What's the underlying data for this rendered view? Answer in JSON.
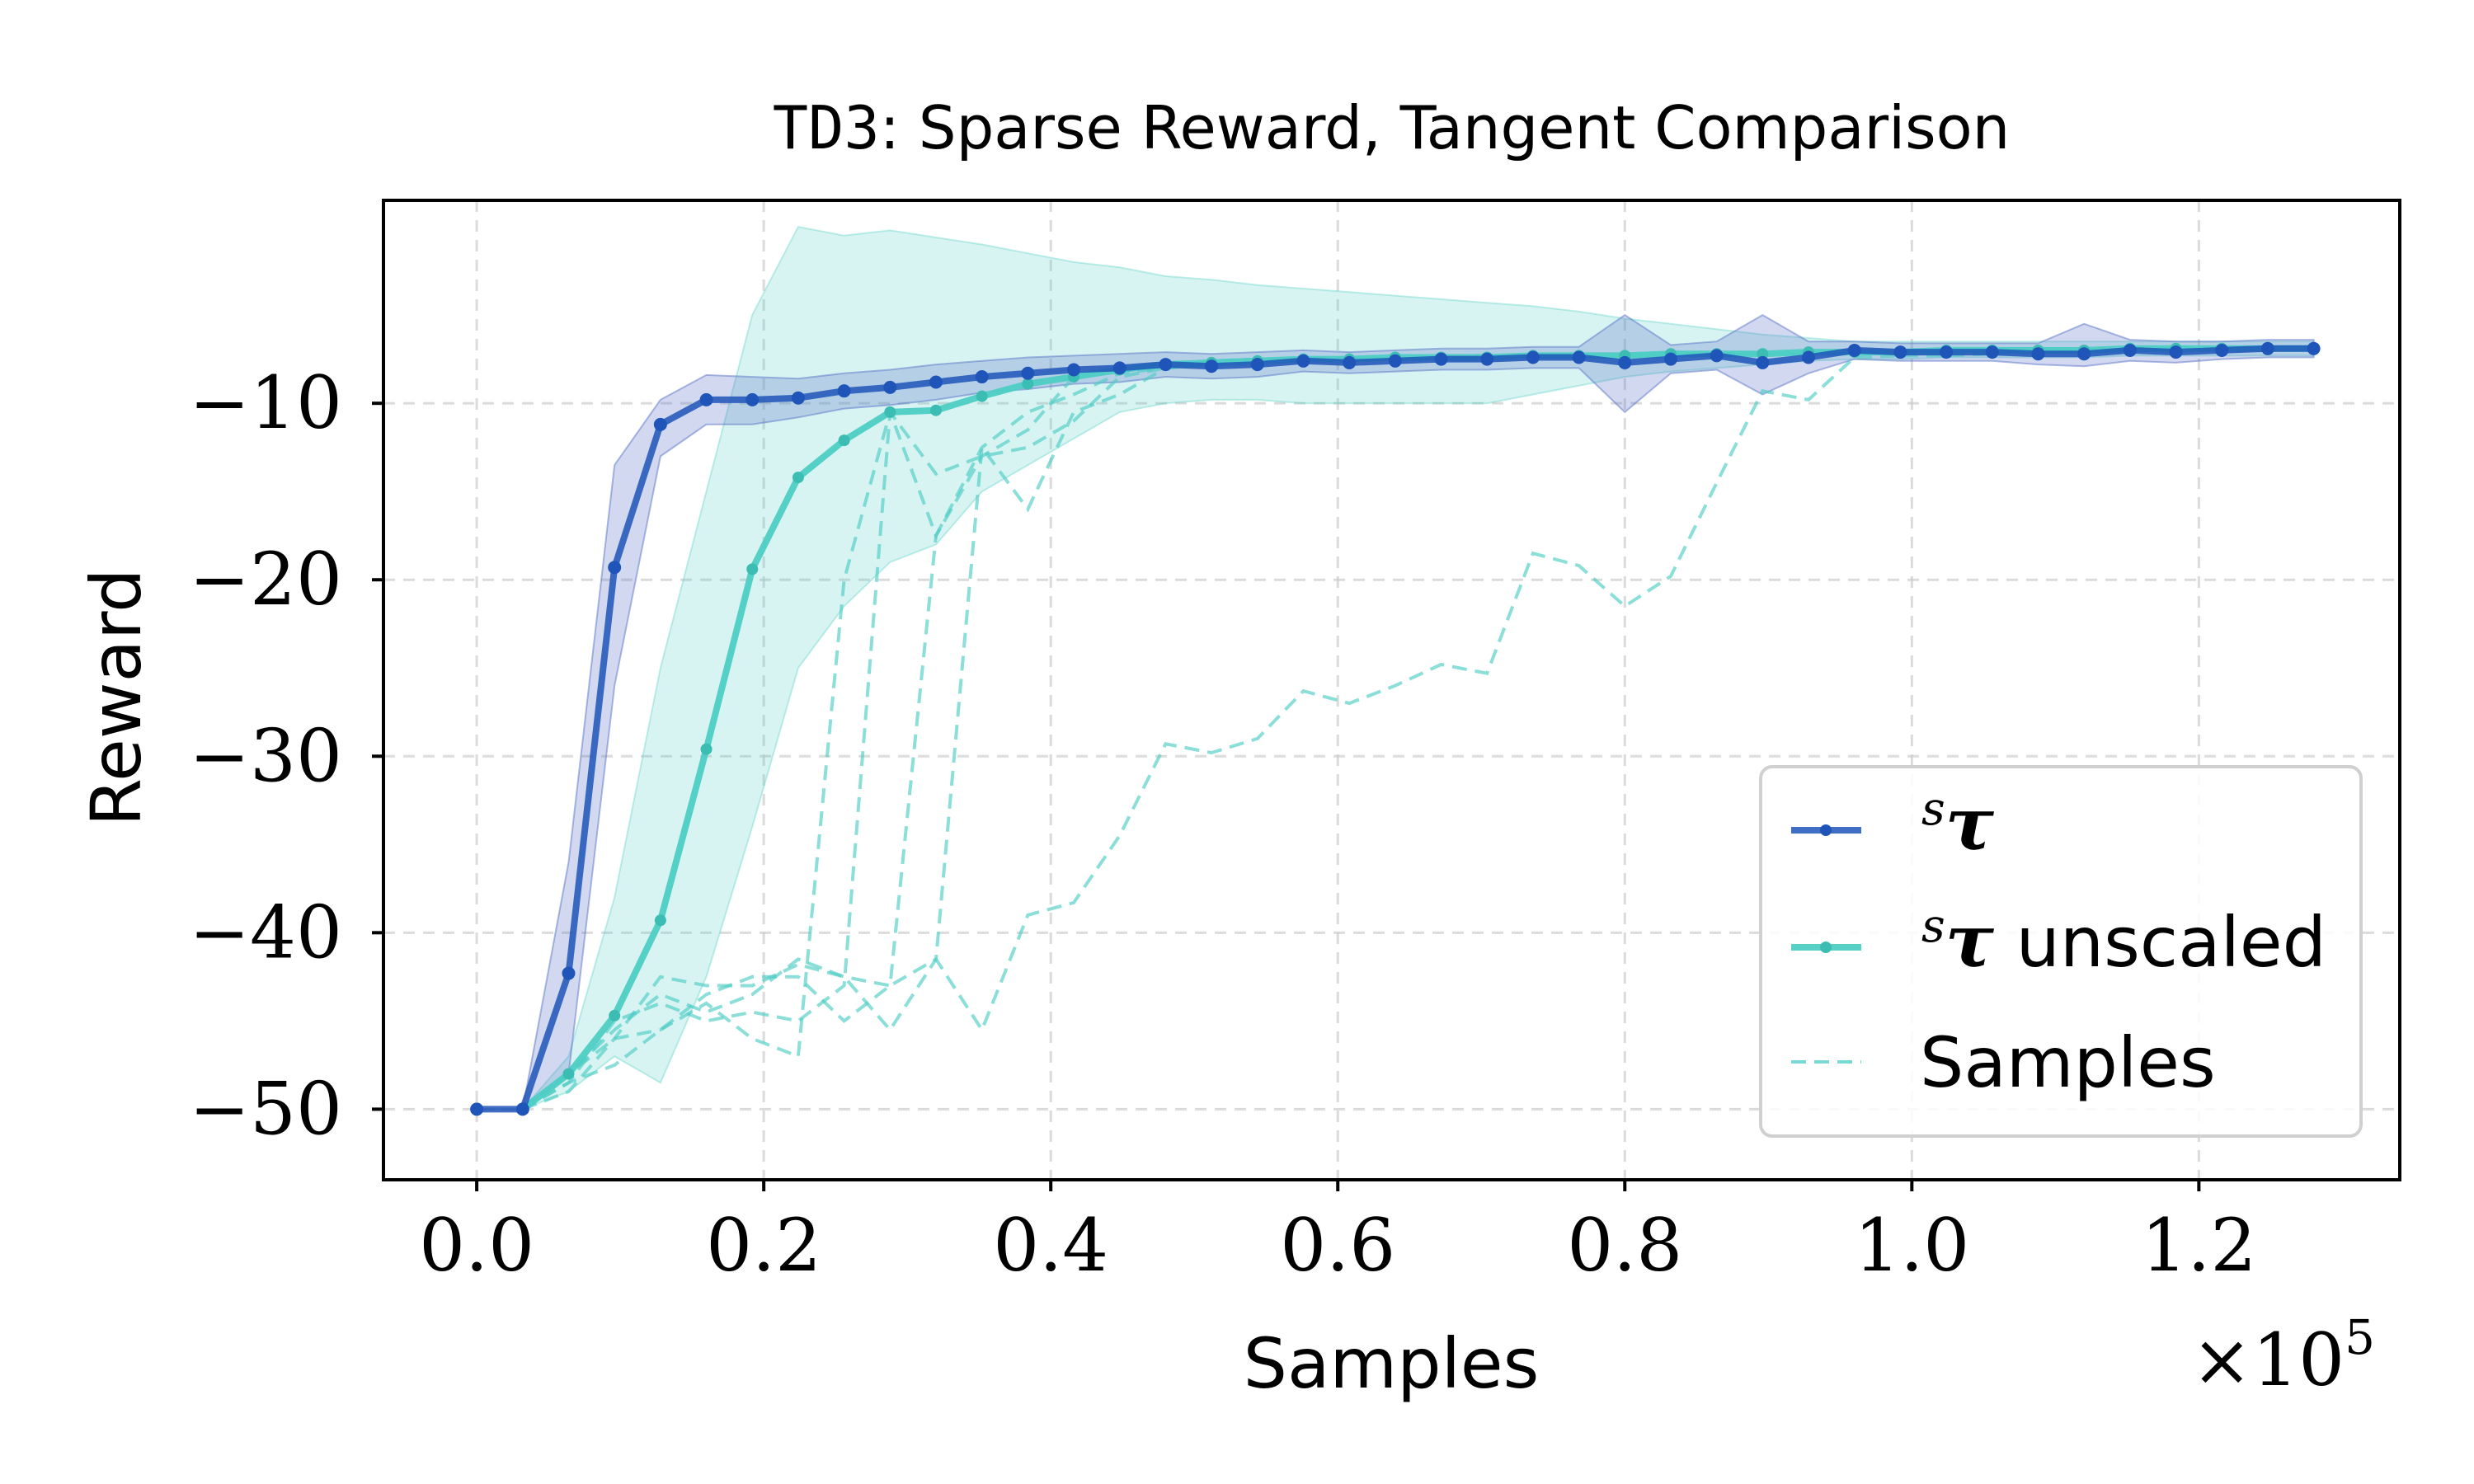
{
  "chart_data": {
    "type": "line",
    "title_prefix": "TD3",
    "title_rest": ": Sparse Reward, Tangent Comparison",
    "xlabel": "Samples",
    "ylabel": "Reward",
    "x_multiplier_label": "×10",
    "x_multiplier_exp": "5",
    "xlim": [
      -0.065,
      1.34
    ],
    "ylim": [
      -54,
      1.5
    ],
    "x_ticks": [
      0.0,
      0.2,
      0.4,
      0.6,
      0.8,
      1.0,
      1.2
    ],
    "x_tick_labels": [
      "0.0",
      "0.2",
      "0.4",
      "0.6",
      "0.8",
      "1.0",
      "1.2"
    ],
    "y_ticks": [
      -50,
      -40,
      -30,
      -20,
      -10
    ],
    "y_tick_labels": [
      "−50",
      "−40",
      "−30",
      "−20",
      "−10"
    ],
    "colors": {
      "tau": "#1f55b8",
      "tau_band": "#5a73c8",
      "unscaled": "#4ecdc4",
      "unscaled_band": "#4ecdc4",
      "samples": "#4ecdc4"
    },
    "legend": {
      "position": "lower-right",
      "entries": [
        {
          "symbol": "τ",
          "sup": "s",
          "text": ""
        },
        {
          "symbol": "τ",
          "sup": "s",
          "text": " unscaled"
        },
        {
          "symbol": "",
          "sup": "",
          "text": "Samples"
        }
      ]
    },
    "series": [
      {
        "name": "sτ",
        "x": [
          0.0,
          0.032,
          0.064,
          0.096,
          0.128,
          0.16,
          0.192,
          0.224,
          0.256,
          0.288,
          0.32,
          0.352,
          0.384,
          0.416,
          0.448,
          0.48,
          0.512,
          0.544,
          0.576,
          0.608,
          0.64,
          0.672,
          0.704,
          0.736,
          0.768,
          0.8,
          0.832,
          0.864,
          0.896,
          0.928,
          0.96,
          0.992,
          1.024,
          1.056,
          1.088,
          1.12,
          1.152,
          1.184,
          1.216,
          1.248,
          1.28
        ],
        "values": [
          -50,
          -50,
          -42.3,
          -19.3,
          -11.2,
          -9.8,
          -9.8,
          -9.7,
          -9.3,
          -9.1,
          -8.8,
          -8.5,
          -8.3,
          -8.1,
          -8.0,
          -7.8,
          -7.9,
          -7.8,
          -7.6,
          -7.7,
          -7.6,
          -7.5,
          -7.5,
          -7.4,
          -7.4,
          -7.7,
          -7.5,
          -7.3,
          -7.7,
          -7.4,
          -7.0,
          -7.1,
          -7.1,
          -7.1,
          -7.2,
          -7.2,
          -7.0,
          -7.1,
          -7.0,
          -6.9,
          -6.9
        ],
        "lower": [
          -50,
          -50,
          -48,
          -26,
          -13,
          -11.2,
          -11.2,
          -10.8,
          -10.3,
          -10.1,
          -9.8,
          -9.4,
          -9.2,
          -8.9,
          -8.8,
          -8.5,
          -8.6,
          -8.5,
          -8.2,
          -8.3,
          -8.2,
          -8.1,
          -8.1,
          -8.0,
          -8.0,
          -10.5,
          -8.3,
          -8.1,
          -9.5,
          -8.3,
          -7.5,
          -7.6,
          -7.6,
          -7.6,
          -7.8,
          -7.9,
          -7.6,
          -7.7,
          -7.5,
          -7.4,
          -7.4
        ],
        "upper": [
          -50,
          -50,
          -36,
          -13.5,
          -9.8,
          -8.4,
          -8.5,
          -8.6,
          -8.3,
          -8.1,
          -7.8,
          -7.6,
          -7.4,
          -7.3,
          -7.2,
          -7.1,
          -7.2,
          -7.1,
          -7.0,
          -7.1,
          -7.0,
          -6.9,
          -6.9,
          -6.8,
          -6.8,
          -5.0,
          -6.7,
          -6.5,
          -5.0,
          -6.5,
          -6.5,
          -6.6,
          -6.6,
          -6.6,
          -6.6,
          -5.5,
          -6.4,
          -6.5,
          -6.5,
          -6.4,
          -6.4
        ]
      },
      {
        "name": "sτ unscaled",
        "x": [
          0.032,
          0.064,
          0.096,
          0.128,
          0.16,
          0.192,
          0.224,
          0.256,
          0.288,
          0.32,
          0.352,
          0.384,
          0.416,
          0.448,
          0.48,
          0.512,
          0.544,
          0.576,
          0.608,
          0.64,
          0.672,
          0.704,
          0.736,
          0.768,
          0.8,
          0.832,
          0.864,
          0.896,
          0.928,
          0.96,
          0.992,
          1.024,
          1.056,
          1.088,
          1.12,
          1.152,
          1.184,
          1.216,
          1.248,
          1.28
        ],
        "values": [
          -50,
          -48,
          -44.7,
          -39.3,
          -29.6,
          -19.4,
          -14.2,
          -12.1,
          -10.5,
          -10.4,
          -9.6,
          -8.9,
          -8.5,
          -8.1,
          -7.8,
          -7.7,
          -7.6,
          -7.5,
          -7.5,
          -7.4,
          -7.4,
          -7.4,
          -7.3,
          -7.3,
          -7.3,
          -7.2,
          -7.2,
          -7.2,
          -7.1,
          -7.1,
          -7.1,
          -7.0,
          -7.0,
          -7.0,
          -7.0,
          -6.9,
          -6.9,
          -6.9,
          -6.9,
          -6.9
        ],
        "lower": [
          -50,
          -49,
          -47,
          -48.5,
          -42.5,
          -34,
          -25,
          -21.5,
          -19,
          -18,
          -15,
          -13.5,
          -12,
          -10.5,
          -10,
          -9.8,
          -9.8,
          -10,
          -10,
          -10,
          -10,
          -10,
          -9.5,
          -9,
          -8.5,
          -8.2,
          -8,
          -7.8,
          -7.6,
          -7.5,
          -7.5,
          -7.4,
          -7.4,
          -7.4,
          -7.4,
          -7.3,
          -7.3,
          -7.3,
          -7.3,
          -7.3
        ],
        "upper": [
          -50,
          -47,
          -38,
          -25,
          -15,
          -5,
          0,
          -0.5,
          -0.2,
          -0.6,
          -1,
          -1.5,
          -2,
          -2.3,
          -2.8,
          -3,
          -3.3,
          -3.5,
          -3.7,
          -3.9,
          -4.1,
          -4.3,
          -4.5,
          -4.8,
          -5.2,
          -5.5,
          -5.8,
          -6.1,
          -6.3,
          -6.5,
          -6.5,
          -6.5,
          -6.5,
          -6.5,
          -6.5,
          -6.5,
          -6.5,
          -6.5,
          -6.5,
          -6.5
        ]
      }
    ],
    "samples": [
      {
        "x": [
          0.032,
          0.064,
          0.096,
          0.128,
          0.16,
          0.192,
          0.224,
          0.256,
          0.288,
          0.32,
          0.352,
          0.384,
          0.416,
          0.448,
          0.48,
          0.512,
          0.544,
          0.576,
          0.608,
          0.64,
          0.672,
          0.704,
          0.736,
          0.768,
          0.8,
          0.832,
          0.864,
          0.896,
          0.928,
          0.96,
          0.992,
          1.024,
          1.056,
          1.088,
          1.12,
          1.152,
          1.184,
          1.216,
          1.248,
          1.28
        ],
        "values": [
          -50,
          -48.5,
          -47.5,
          -45.5,
          -43.5,
          -42.5,
          -42.5,
          -45,
          -43,
          -41.5,
          -45.5,
          -39,
          -38.3,
          -34.5,
          -29.3,
          -29.8,
          -29,
          -26.3,
          -27,
          -26,
          -24.8,
          -25.3,
          -18.5,
          -19.2,
          -21.5,
          -19.8,
          -14.5,
          -9.3,
          -9.8,
          -7.4,
          -7.3,
          -7.3,
          -7.2,
          -7.1,
          -7.1,
          -7.0,
          -7.0,
          -7.0,
          -6.9,
          -6.9
        ]
      },
      {
        "x": [
          0.032,
          0.064,
          0.096,
          0.128,
          0.16,
          0.192,
          0.224,
          0.256,
          0.288,
          0.32,
          0.352,
          0.384,
          0.416,
          0.448,
          0.48,
          0.512,
          0.544,
          0.576,
          0.608,
          0.64,
          0.672,
          0.704,
          0.736,
          0.768,
          0.8,
          0.832,
          0.864,
          0.896,
          0.928,
          0.96,
          0.992,
          1.024,
          1.056,
          1.088,
          1.12,
          1.152,
          1.184,
          1.216,
          1.248,
          1.28
        ],
        "values": [
          -50,
          -48,
          -45.5,
          -43.5,
          -44.5,
          -43.5,
          -41.5,
          -42.5,
          -43,
          -17.5,
          -13,
          -11.5,
          -8.5,
          -8.0,
          -7.7,
          -7.6,
          -7.5,
          -7.5,
          -7.4,
          -7.4,
          -7.3,
          -7.3,
          -7.3,
          -7.3,
          -7.3,
          -7.2,
          -7.2,
          -7.2,
          -7.1,
          -7.1,
          -7.1,
          -7.1,
          -7.0,
          -7.0,
          -7.0,
          -7.0,
          -6.9,
          -6.9,
          -6.9,
          -6.9
        ]
      },
      {
        "x": [
          0.032,
          0.064,
          0.096,
          0.128,
          0.16,
          0.192,
          0.224,
          0.256,
          0.288,
          0.32,
          0.352,
          0.384,
          0.416,
          0.448,
          0.48,
          0.512,
          0.544,
          0.576,
          0.608,
          0.64,
          0.672,
          0.704,
          0.736,
          0.768,
          0.8,
          0.832,
          0.864,
          0.896,
          0.928,
          0.96,
          0.992,
          1.024,
          1.056,
          1.088,
          1.12,
          1.152,
          1.184,
          1.216,
          1.248,
          1.28
        ],
        "values": [
          -50,
          -49,
          -46,
          -42.5,
          -43,
          -43,
          -41.8,
          -42.5,
          -45.5,
          -41.5,
          -12.5,
          -16,
          -10.5,
          -9.5,
          -8.0,
          -7.8,
          -7.7,
          -7.6,
          -7.5,
          -7.5,
          -7.4,
          -7.4,
          -7.4,
          -7.3,
          -7.3,
          -7.3,
          -7.2,
          -7.2,
          -7.2,
          -7.1,
          -7.1,
          -7.1,
          -7.0,
          -7.0,
          -7.0,
          -7.0,
          -6.9,
          -6.9,
          -6.9,
          -6.9
        ]
      },
      {
        "x": [
          0.032,
          0.064,
          0.096,
          0.128,
          0.16,
          0.192,
          0.224,
          0.256,
          0.288,
          0.32,
          0.352,
          0.384,
          0.416,
          0.448,
          0.48,
          0.512,
          0.544,
          0.576,
          0.608,
          0.64,
          0.672,
          0.704,
          0.736,
          0.768,
          0.8,
          0.832,
          0.864,
          0.896,
          0.928,
          0.96,
          0.992,
          1.024,
          1.056,
          1.088,
          1.12,
          1.152,
          1.184,
          1.216,
          1.248,
          1.28
        ],
        "values": [
          -50,
          -48.5,
          -45,
          -44,
          -45,
          -44.5,
          -45,
          -43,
          -10.5,
          -17.5,
          -12.5,
          -10.5,
          -9.5,
          -8.3,
          -8.0,
          -7.8,
          -7.7,
          -7.6,
          -7.5,
          -7.5,
          -7.4,
          -7.4,
          -7.4,
          -7.3,
          -7.3,
          -7.3,
          -7.2,
          -7.2,
          -7.2,
          -7.1,
          -7.1,
          -7.1,
          -7.0,
          -7.0,
          -7.0,
          -7.0,
          -6.9,
          -6.9,
          -6.9,
          -6.9
        ]
      },
      {
        "x": [
          0.032,
          0.064,
          0.096,
          0.128,
          0.16,
          0.192,
          0.224,
          0.256,
          0.288,
          0.32,
          0.352,
          0.384,
          0.416,
          0.448,
          0.48,
          0.512,
          0.544,
          0.576,
          0.608,
          0.64,
          0.672,
          0.704,
          0.736,
          0.768,
          0.8,
          0.832,
          0.864,
          0.896,
          0.928,
          0.96,
          0.992,
          1.024,
          1.056,
          1.088,
          1.12,
          1.152,
          1.184,
          1.216,
          1.248,
          1.28
        ],
        "values": [
          -50,
          -48,
          -46,
          -45.5,
          -44,
          -46,
          -47,
          -20,
          -10.5,
          -14,
          -13,
          -12.5,
          -11,
          -8.5,
          -8.0,
          -7.8,
          -7.7,
          -7.6,
          -7.5,
          -7.5,
          -7.4,
          -7.4,
          -7.4,
          -7.3,
          -7.3,
          -7.3,
          -7.2,
          -7.2,
          -7.2,
          -7.1,
          -7.1,
          -7.1,
          -7.0,
          -7.0,
          -7.0,
          -7.0,
          -6.9,
          -6.9,
          -6.9,
          -6.9
        ]
      }
    ]
  }
}
